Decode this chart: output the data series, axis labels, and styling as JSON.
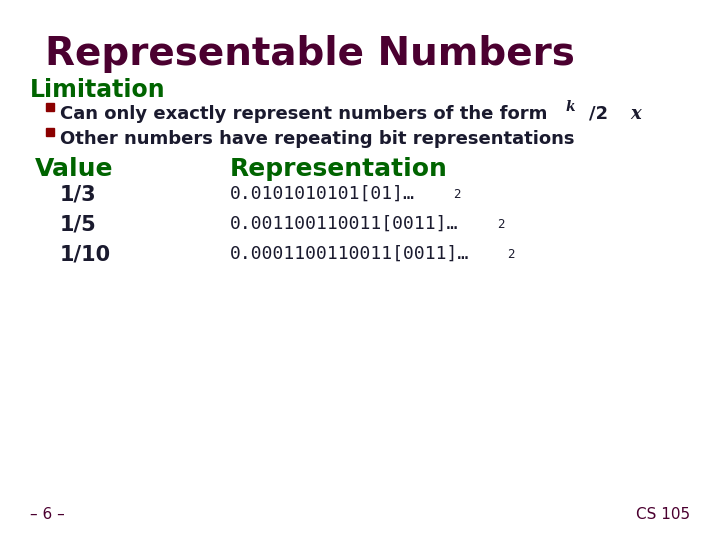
{
  "title": "Representable Numbers",
  "title_color": "#4B0030",
  "subtitle": "Limitation",
  "subtitle_color": "#006400",
  "bg_color": "#FFFFFF",
  "bullet_color": "#8B0000",
  "bullet_text_color": "#1a1a2e",
  "bullet1_plain": "Can only exactly represent numbers of the form ",
  "bullet1_italic": "x",
  "bullet1_mid": "/2",
  "bullet1_super": "k",
  "bullet2": "Other numbers have repeating bit representations",
  "col1_header": "Value",
  "col2_header": "Representation",
  "header_color": "#006400",
  "values": [
    "1/3",
    "1/5",
    "1/10"
  ],
  "value_color": "#1a1a2e",
  "representations": [
    "0.0101010101[01]…",
    "0.001100110011[0011]…",
    "0.0001100110011[0011]…"
  ],
  "rep_color": "#1a1a2e",
  "subscript_2": "2",
  "footer_left": "– 6 –",
  "footer_right": "CS 105",
  "footer_color": "#4B0030",
  "title_fontsize": 28,
  "subtitle_fontsize": 17,
  "bullet_fontsize": 13,
  "header_fontsize": 18,
  "value_fontsize": 15,
  "rep_fontsize": 13,
  "footer_fontsize": 11
}
